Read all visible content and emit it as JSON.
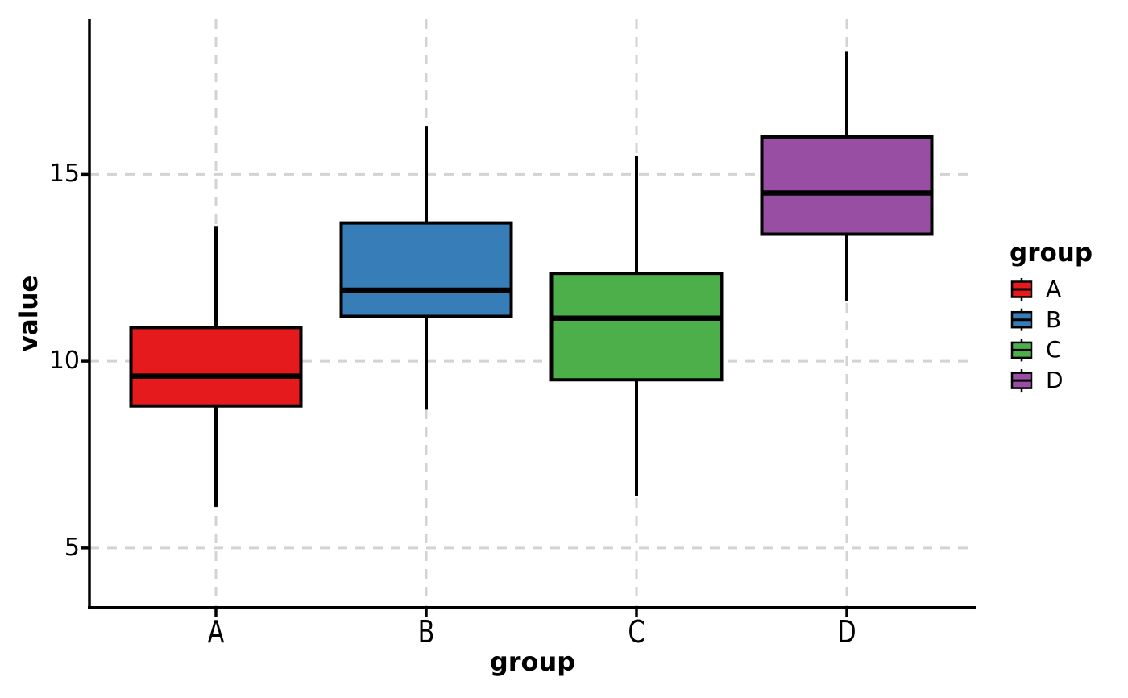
{
  "figure": {
    "background": "#FFFFFF",
    "axis_color": "#000000",
    "grid_color": "#D3D3D3"
  },
  "chart_data": {
    "type": "boxplot",
    "title": "",
    "xlabel": "group",
    "ylabel": "value",
    "categories": [
      "A",
      "B",
      "C",
      "D"
    ],
    "yticks": [
      5,
      10,
      15
    ],
    "ylim": [
      3.4,
      19.15
    ],
    "grid": "dashed-both-axes",
    "legend": {
      "title": "group",
      "position": "right",
      "entries": [
        {
          "label": "A",
          "color": "#E41A1C"
        },
        {
          "label": "B",
          "color": "#377EB8"
        },
        {
          "label": "C",
          "color": "#4DAF4A"
        },
        {
          "label": "D",
          "color": "#984EA3"
        }
      ]
    },
    "series": [
      {
        "name": "A",
        "color": "#E41A1C",
        "whisker_low": 6.1,
        "q1": 8.8,
        "median": 9.6,
        "q3": 10.9,
        "whisker_high": 13.6
      },
      {
        "name": "B",
        "color": "#377EB8",
        "whisker_low": 8.7,
        "q1": 11.2,
        "median": 11.9,
        "q3": 13.7,
        "whisker_high": 16.3
      },
      {
        "name": "C",
        "color": "#4DAF4A",
        "whisker_low": 6.4,
        "q1": 9.5,
        "median": 11.15,
        "q3": 12.35,
        "whisker_high": 15.5
      },
      {
        "name": "D",
        "color": "#984EA3",
        "whisker_low": 11.6,
        "q1": 13.4,
        "median": 14.5,
        "q3": 16.0,
        "whisker_high": 18.3
      }
    ]
  }
}
